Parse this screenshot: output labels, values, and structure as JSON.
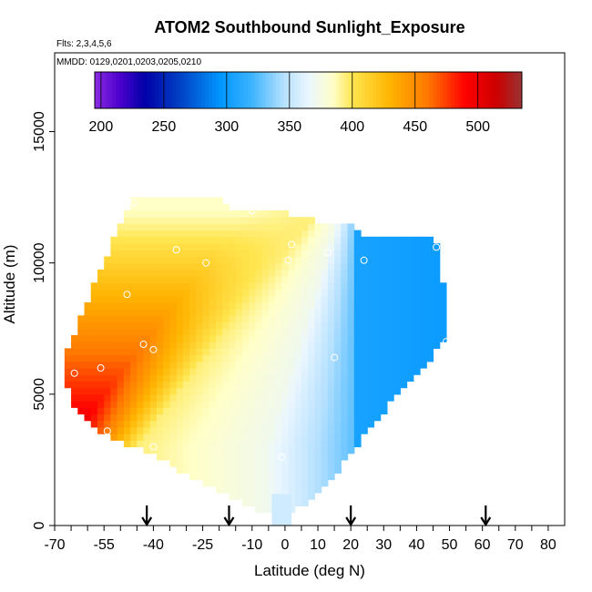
{
  "chart_data": {
    "type": "heatmap",
    "title": "ATOM2 Southbound Sunlight_Exposure",
    "flights_note": "Flts: 2,3,4,5,6",
    "dates_note": "MMDD: 0129,0201,0203,0205,0210",
    "xlabel": "Latitude (deg N)",
    "ylabel": "Altitude (m)",
    "xlim": [
      -70,
      85
    ],
    "ylim": [
      0,
      18000
    ],
    "x_tick_labels": [
      "-70",
      "-55",
      "-40",
      "-25",
      "-10",
      "0",
      "10",
      "20",
      "30",
      "40",
      "50",
      "60",
      "70",
      "80"
    ],
    "x_tick_values": [
      -70,
      -55,
      -40,
      -25,
      -10,
      0,
      10,
      20,
      30,
      40,
      50,
      60,
      70,
      80
    ],
    "y_tick_labels": [
      "0",
      "5000",
      "10000",
      "15000"
    ],
    "y_tick_values": [
      0,
      5000,
      10000,
      15000
    ],
    "colorbar": {
      "range": [
        195,
        535
      ],
      "tick_labels": [
        "200",
        "250",
        "300",
        "350",
        "400",
        "450",
        "500"
      ],
      "tick_values": [
        200,
        250,
        300,
        350,
        400,
        450,
        500
      ],
      "color_stops": [
        {
          "v": 195,
          "c": "#8a2be2"
        },
        {
          "v": 215,
          "c": "#4b00cc"
        },
        {
          "v": 235,
          "c": "#0000a8"
        },
        {
          "v": 265,
          "c": "#0046c8"
        },
        {
          "v": 295,
          "c": "#0096ff"
        },
        {
          "v": 320,
          "c": "#3cb4ff"
        },
        {
          "v": 345,
          "c": "#b4e0ff"
        },
        {
          "v": 365,
          "c": "#eaf6ff"
        },
        {
          "v": 385,
          "c": "#ffffc8"
        },
        {
          "v": 400,
          "c": "#ffe650"
        },
        {
          "v": 430,
          "c": "#ffb400"
        },
        {
          "v": 460,
          "c": "#ff7800"
        },
        {
          "v": 490,
          "c": "#ff0000"
        },
        {
          "v": 515,
          "c": "#cc0000"
        },
        {
          "v": 535,
          "c": "#993333"
        }
      ]
    },
    "field_model": {
      "description_keys": "value = f(lat, alt)",
      "south_edge_value_at_low_alt": 510,
      "south_edge_value_at_high_alt": 385,
      "north_band_value": 305
    },
    "envelope": [
      {
        "lat": -2,
        "alt_min": 600,
        "alt_max": 0
      },
      {
        "lat": -66,
        "alt_min": 5200,
        "alt_max": 6800
      },
      {
        "lat": -64,
        "alt_min": 4600,
        "alt_max": 7300
      },
      {
        "lat": -62,
        "alt_min": 4300,
        "alt_max": 8000
      },
      {
        "lat": -60,
        "alt_min": 4000,
        "alt_max": 8600
      },
      {
        "lat": -58,
        "alt_min": 3800,
        "alt_max": 9200
      },
      {
        "lat": -56,
        "alt_min": 3600,
        "alt_max": 9700
      },
      {
        "lat": -54,
        "alt_min": 3400,
        "alt_max": 10300
      },
      {
        "lat": -52,
        "alt_min": 3300,
        "alt_max": 10900
      },
      {
        "lat": -50,
        "alt_min": 3200,
        "alt_max": 11500
      },
      {
        "lat": -48,
        "alt_min": 3100,
        "alt_max": 12000
      },
      {
        "lat": -46,
        "alt_min": 3000,
        "alt_max": 12400
      },
      {
        "lat": -44,
        "alt_min": 2900,
        "alt_max": 12400
      },
      {
        "lat": -40,
        "alt_min": 2700,
        "alt_max": 12400
      },
      {
        "lat": -36,
        "alt_min": 2400,
        "alt_max": 12400
      },
      {
        "lat": -32,
        "alt_min": 2100,
        "alt_max": 12400
      },
      {
        "lat": -28,
        "alt_min": 1800,
        "alt_max": 12400
      },
      {
        "lat": -24,
        "alt_min": 1600,
        "alt_max": 12400
      },
      {
        "lat": -20,
        "alt_min": 1300,
        "alt_max": 12400
      },
      {
        "lat": -16,
        "alt_min": 1000,
        "alt_max": 12000
      },
      {
        "lat": -12,
        "alt_min": 800,
        "alt_max": 12000
      },
      {
        "lat": -8,
        "alt_min": 600,
        "alt_max": 12000
      },
      {
        "lat": -4,
        "alt_min": 500,
        "alt_max": 12000
      },
      {
        "lat": 0,
        "alt_min": 500,
        "alt_max": 11900
      },
      {
        "lat": 4,
        "alt_min": 700,
        "alt_max": 11800
      },
      {
        "lat": 8,
        "alt_min": 1000,
        "alt_max": 11800
      },
      {
        "lat": 12,
        "alt_min": 1400,
        "alt_max": 11400
      },
      {
        "lat": 16,
        "alt_min": 2100,
        "alt_max": 11400
      },
      {
        "lat": 20,
        "alt_min": 2700,
        "alt_max": 11400
      },
      {
        "lat": 24,
        "alt_min": 3400,
        "alt_max": 11000
      },
      {
        "lat": 28,
        "alt_min": 4000,
        "alt_max": 11000
      },
      {
        "lat": 32,
        "alt_min": 4700,
        "alt_max": 11000
      },
      {
        "lat": 36,
        "alt_min": 5200,
        "alt_max": 11000
      },
      {
        "lat": 40,
        "alt_min": 5800,
        "alt_max": 11000
      },
      {
        "lat": 44,
        "alt_min": 6300,
        "alt_max": 11000
      },
      {
        "lat": 47,
        "alt_min": 6800,
        "alt_max": 10600
      },
      {
        "lat": 49,
        "alt_min": 7000,
        "alt_max": 8000
      }
    ],
    "sample_points": [
      {
        "lat": -64,
        "alt": 5800
      },
      {
        "lat": -56,
        "alt": 6000
      },
      {
        "lat": -43,
        "alt": 6900
      },
      {
        "lat": -40,
        "alt": 6700
      },
      {
        "lat": -48,
        "alt": 8800
      },
      {
        "lat": -33,
        "alt": 10500
      },
      {
        "lat": -24,
        "alt": 10000
      },
      {
        "lat": -46,
        "alt": 12300
      },
      {
        "lat": -10,
        "alt": 12000
      },
      {
        "lat": 1,
        "alt": 10100
      },
      {
        "lat": 2,
        "alt": 10700
      },
      {
        "lat": 13,
        "alt": 10400
      },
      {
        "lat": 24,
        "alt": 10100
      },
      {
        "lat": 46,
        "alt": 10600
      },
      {
        "lat": 49,
        "alt": 7000
      },
      {
        "lat": 15,
        "alt": 6400
      },
      {
        "lat": -40,
        "alt": 3000
      },
      {
        "lat": -1,
        "alt": 2600
      },
      {
        "lat": -54,
        "alt": 3600
      }
    ],
    "arrows_lat": [
      -42,
      -17,
      20,
      61
    ],
    "dashed_segment": {
      "lat": -3,
      "alt_min": 0,
      "alt_max": 400
    }
  }
}
